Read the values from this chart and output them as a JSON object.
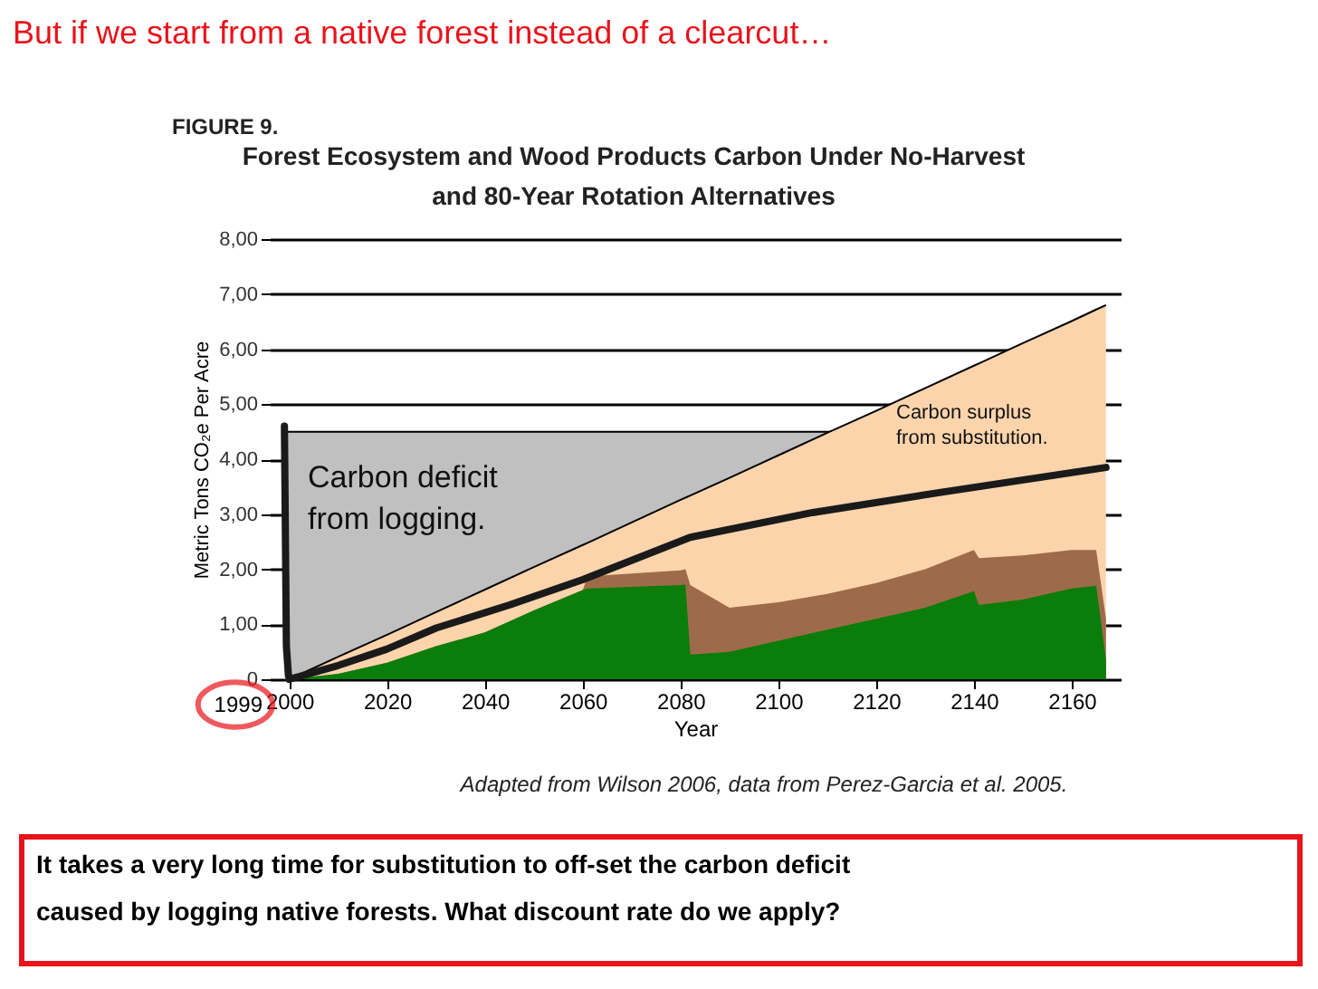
{
  "chart_data": {
    "type": "area",
    "title": "But if we start from a native forest instead of a clearcut…",
    "subtitle": "Forest Ecosystem and Wood Products Carbon Under No-Harvest and 80-Year Rotation Alternatives",
    "xlabel": "Year",
    "ylabel": "Metric Tons CO₂e Per Acre",
    "annotations": [
      "FIGURE 9.",
      "Carbon deficit from logging.",
      "Carbon surplus from substitution.",
      "Adapted from Wilson 2006, data from Perez-Garcia et al. 2005.",
      "1999",
      "It takes a very long time for substitution to off-set the carbon deficit caused by logging native forests.  What discount rate do we apply?"
    ],
    "x": [
      2000,
      2010,
      2020,
      2030,
      2040,
      2050,
      2060,
      2061,
      2070,
      2080,
      2081,
      2082,
      2090,
      2100,
      2110,
      2120,
      2130,
      2140,
      2141,
      2150,
      2160,
      2165,
      2167
    ],
    "series": [
      {
        "color": "#c0c0c0",
        "x": [
          1999,
          2111
        ],
        "values": [
          4.5,
          4.5
        ]
      },
      {
        "color": "#fcd4ac",
        "values": [
          0,
          0.41,
          0.81,
          1.22,
          1.63,
          2.04,
          2.44,
          2.48,
          2.85,
          3.26,
          3.3,
          3.34,
          3.66,
          4.07,
          4.48,
          4.88,
          5.29,
          5.7,
          5.74,
          6.11,
          6.51,
          6.72,
          6.8
        ]
      },
      {
        "color": "#9e6b4a",
        "values": [
          0,
          0.1,
          0.3,
          0.6,
          0.85,
          1.25,
          1.62,
          1.87,
          1.92,
          1.98,
          2.0,
          1.71,
          1.3,
          1.4,
          1.55,
          1.75,
          2.0,
          2.35,
          2.2,
          2.25,
          2.35,
          2.35,
          1.1
        ]
      },
      {
        "color": "#0a7d0a",
        "values": [
          0,
          0.1,
          0.3,
          0.6,
          0.85,
          1.25,
          1.62,
          1.65,
          1.68,
          1.71,
          1.72,
          0.45,
          0.5,
          0.7,
          0.9,
          1.1,
          1.3,
          1.6,
          1.35,
          1.45,
          1.65,
          1.7,
          0.35
        ]
      },
      {
        "type": "line",
        "color": "#1a1a1a",
        "x": [
          1999,
          1999.4,
          1999.8,
          2000,
          2010,
          2020,
          2030,
          2045,
          2060,
          2082,
          2107,
          2132,
          2167
        ],
        "values": [
          4.6,
          0.6,
          0.1,
          0,
          0.25,
          0.55,
          0.93,
          1.35,
          1.81,
          2.58,
          3.03,
          3.38,
          3.85
        ]
      }
    ],
    "xlim": [
      1996,
      2170
    ],
    "xticks": [
      2000,
      2020,
      2040,
      2060,
      2080,
      2100,
      2120,
      2140,
      2160
    ],
    "ylim": [
      0,
      8
    ],
    "yticks": [
      0,
      {
        "value": 1,
        "label": "1,00"
      },
      {
        "value": 2,
        "label": "2,00"
      },
      {
        "value": 3,
        "label": "3,00"
      },
      {
        "value": 4,
        "label": "4,00"
      },
      {
        "value": 5,
        "label": "5,00"
      },
      {
        "value": 6,
        "label": "6,00"
      },
      {
        "value": 7,
        "label": "7,00"
      },
      {
        "value": 8,
        "label": "8,00"
      }
    ],
    "grid": "y"
  }
}
